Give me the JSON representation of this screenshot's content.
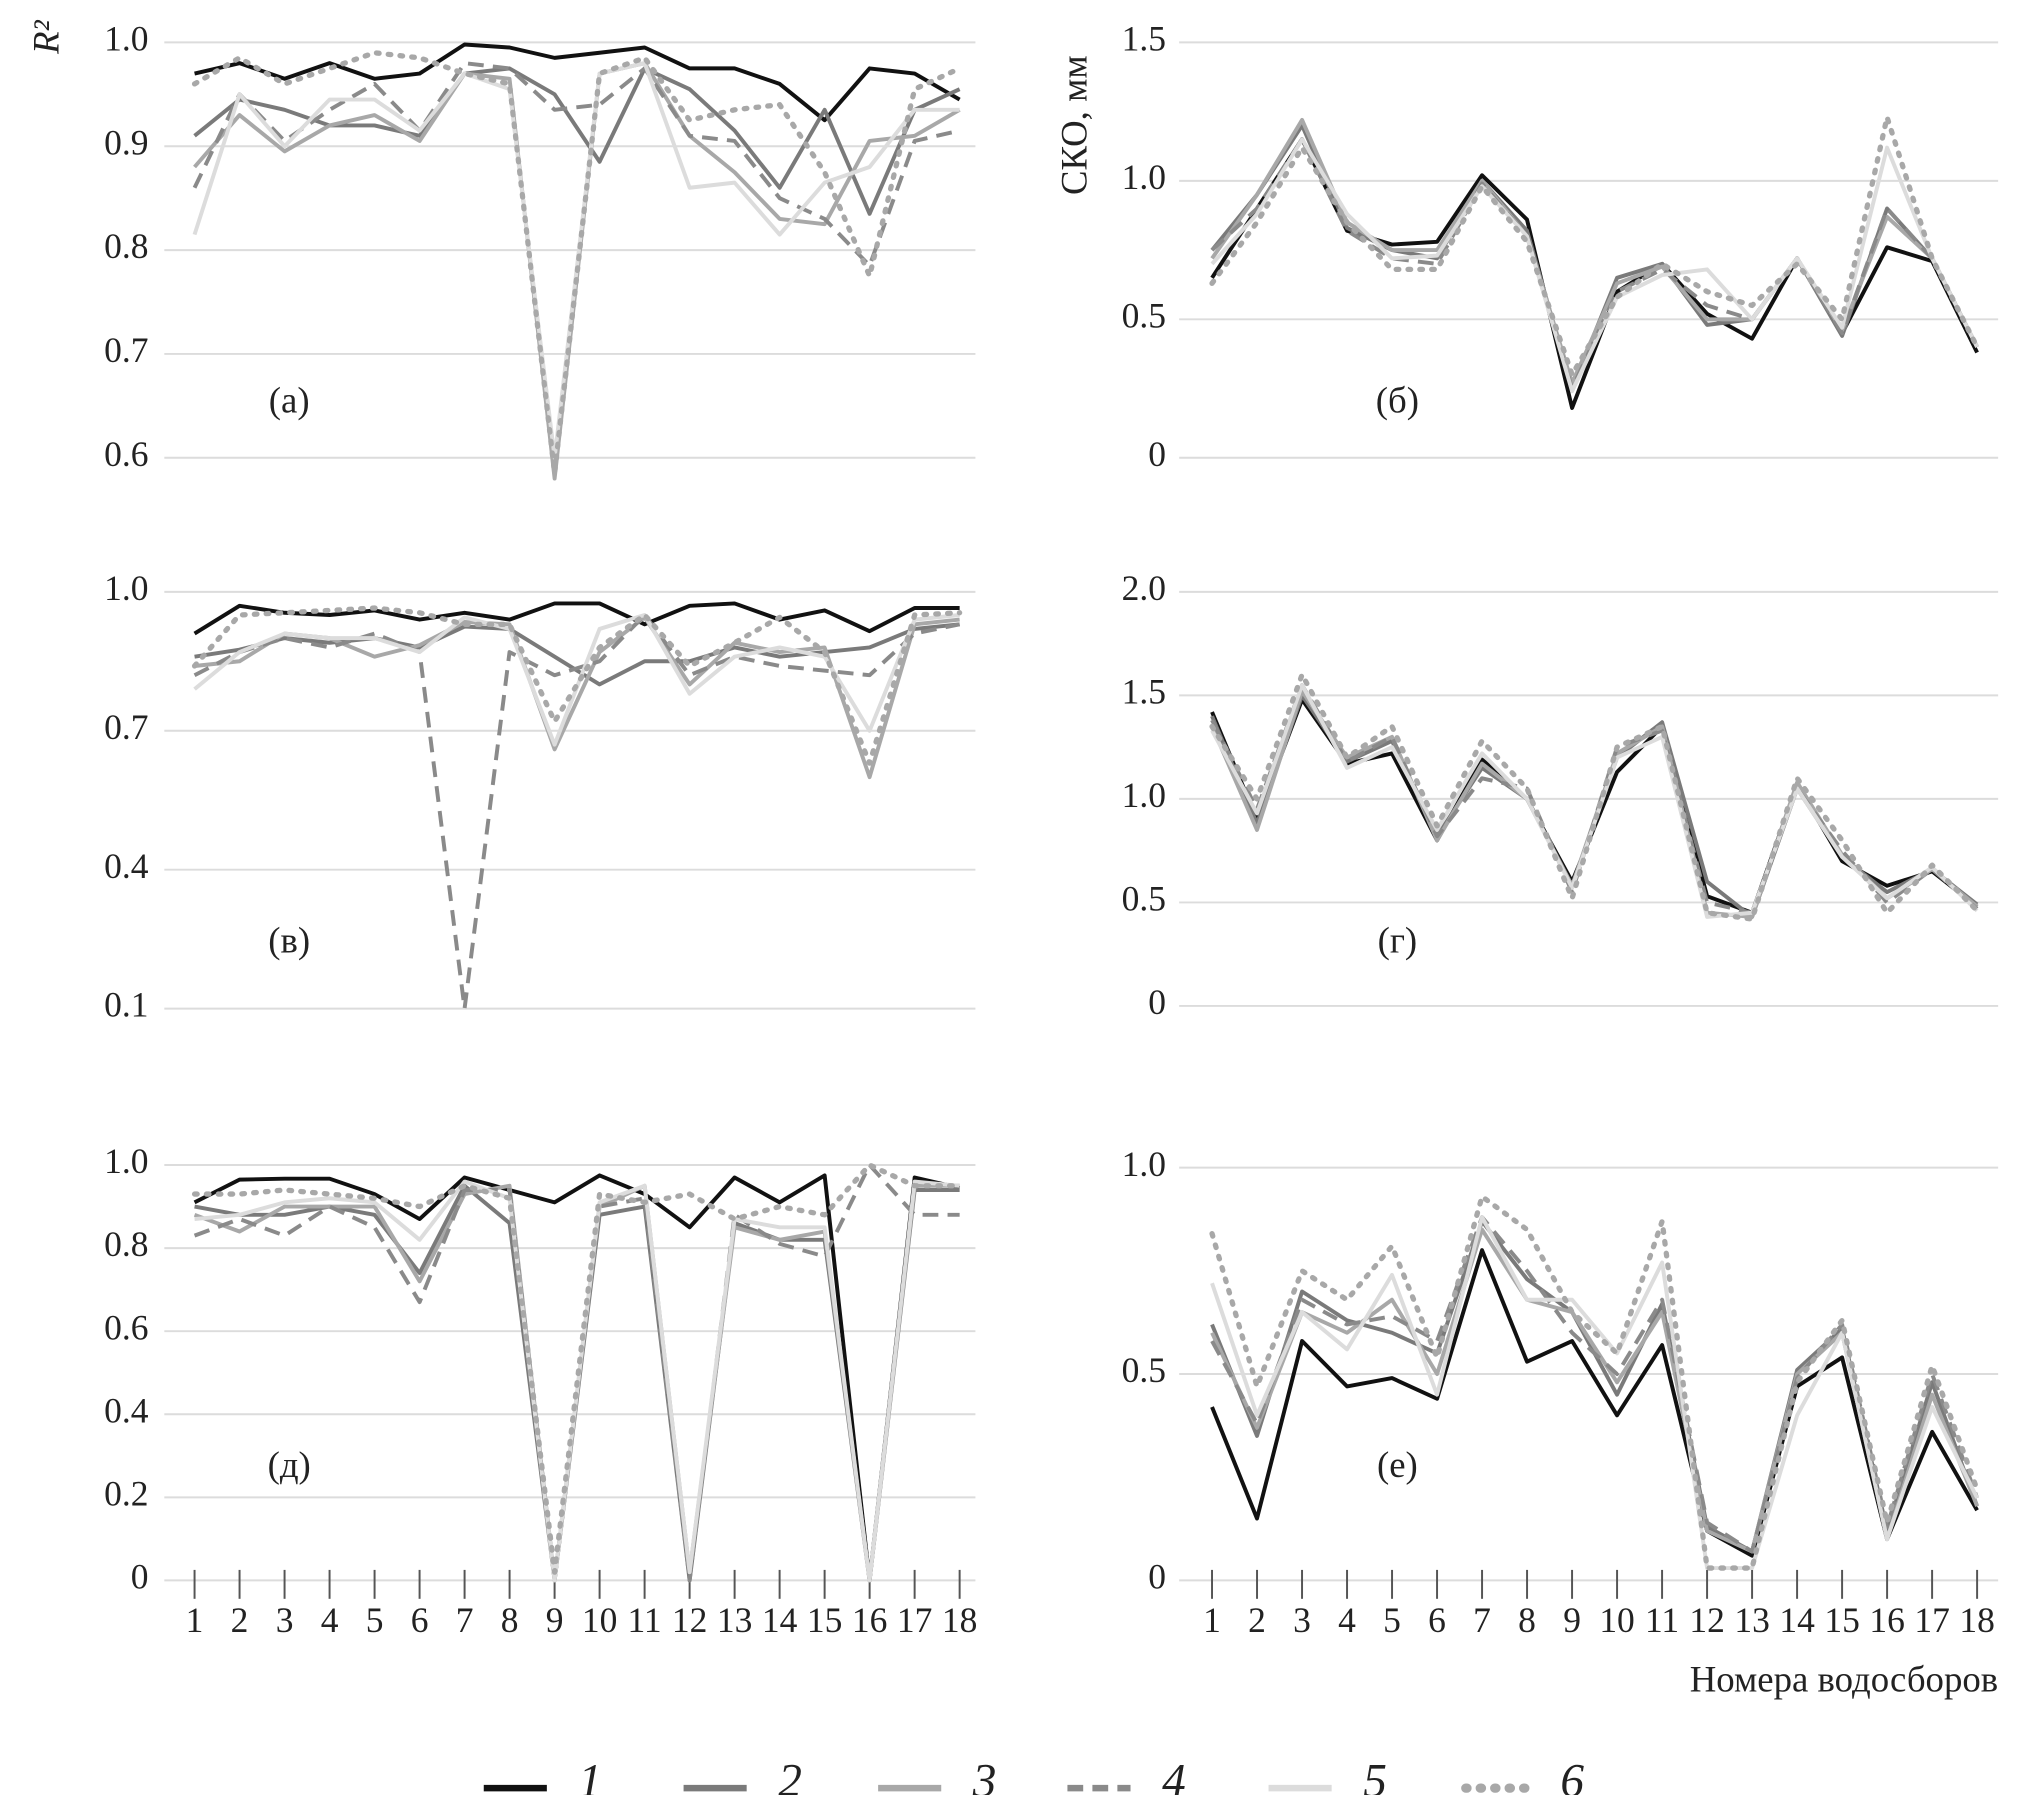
{
  "series_styles": [
    {
      "name": "1",
      "color": "#111111",
      "dash": "none"
    },
    {
      "name": "2",
      "color": "#7a7a7a",
      "dash": "none"
    },
    {
      "name": "3",
      "color": "#a8a8a8",
      "dash": "none"
    },
    {
      "name": "4",
      "color": "#8a8a8a",
      "dash": "12 7"
    },
    {
      "name": "5",
      "color": "#dcdcdc",
      "dash": "none"
    },
    {
      "name": "6",
      "color": "#a8a8a8",
      "dash": "2 7"
    }
  ],
  "chart_data": [
    {
      "type": "line",
      "ylabel": "R²",
      "annotation": "(а)",
      "grid": true,
      "ylim": [
        0.6,
        1.0
      ],
      "yticks": [
        0.6,
        0.7,
        0.8,
        0.9,
        {
          "value": 1,
          "label": "1.0"
        }
      ],
      "series": [
        {
          "values": [
            0.97,
            0.98,
            0.965,
            0.98,
            0.965,
            0.97,
            0.998,
            0.995,
            0.985,
            0.99,
            0.995,
            0.975,
            0.975,
            0.96,
            0.925,
            0.975,
            0.97,
            0.945
          ]
        },
        {
          "values": [
            0.91,
            0.945,
            0.935,
            0.92,
            0.92,
            0.91,
            0.97,
            0.975,
            0.95,
            0.885,
            0.975,
            0.955,
            0.915,
            0.86,
            0.935,
            0.835,
            0.935,
            0.955
          ]
        },
        {
          "values": [
            0.88,
            0.93,
            0.895,
            0.92,
            0.93,
            0.905,
            0.97,
            0.965,
            0.58,
            0.97,
            0.98,
            0.91,
            0.875,
            0.83,
            0.825,
            0.905,
            0.91,
            0.935
          ]
        },
        {
          "values": [
            0.86,
            0.95,
            0.905,
            0.935,
            0.96,
            0.915,
            0.98,
            0.975,
            0.935,
            0.94,
            0.975,
            0.91,
            0.905,
            0.85,
            0.83,
            0.785,
            0.905,
            0.915
          ]
        },
        {
          "values": [
            0.815,
            0.95,
            0.9,
            0.945,
            0.945,
            0.915,
            0.97,
            0.955,
            0.6,
            0.97,
            0.98,
            0.86,
            0.865,
            0.815,
            0.865,
            0.88,
            0.935,
            0.935
          ]
        },
        {
          "values": [
            0.96,
            0.985,
            0.96,
            0.975,
            0.99,
            0.985,
            0.97,
            0.96,
            0.585,
            0.97,
            0.985,
            0.925,
            0.935,
            0.94,
            0.875,
            0.775,
            0.955,
            0.975
          ]
        }
      ]
    },
    {
      "type": "line",
      "ylabel": "СКО, мм",
      "annotation": "(б)",
      "grid": true,
      "ylim": [
        0,
        1.5
      ],
      "yticks": [
        0,
        0.5,
        {
          "value": 1,
          "label": "1.0"
        },
        1.5
      ],
      "series": [
        {
          "values": [
            0.65,
            0.9,
            1.15,
            0.82,
            0.77,
            0.78,
            1.02,
            0.86,
            0.18,
            0.6,
            0.7,
            0.52,
            0.43,
            0.72,
            0.45,
            0.76,
            0.71,
            0.38
          ]
        },
        {
          "values": [
            0.75,
            0.95,
            1.2,
            0.83,
            0.75,
            0.72,
            1.0,
            0.82,
            0.25,
            0.65,
            0.7,
            0.48,
            0.5,
            0.72,
            0.44,
            0.9,
            0.72,
            0.4
          ]
        },
        {
          "values": [
            0.72,
            0.95,
            1.22,
            0.85,
            0.75,
            0.75,
            1.0,
            0.8,
            0.27,
            0.63,
            0.69,
            0.5,
            0.5,
            0.72,
            0.46,
            0.87,
            0.72,
            0.4
          ]
        },
        {
          "values": [
            0.75,
            0.9,
            1.15,
            0.82,
            0.72,
            0.7,
            0.99,
            0.8,
            0.25,
            0.6,
            0.68,
            0.55,
            0.5,
            0.72,
            0.45,
            0.9,
            0.72,
            0.4
          ]
        },
        {
          "values": [
            0.7,
            0.88,
            1.15,
            0.88,
            0.72,
            0.73,
            0.98,
            0.8,
            0.24,
            0.58,
            0.66,
            0.68,
            0.5,
            0.72,
            0.47,
            1.12,
            0.72,
            0.4
          ]
        },
        {
          "values": [
            0.63,
            0.85,
            1.12,
            0.85,
            0.68,
            0.68,
            0.98,
            0.78,
            0.3,
            0.58,
            0.7,
            0.6,
            0.55,
            0.7,
            0.5,
            1.23,
            0.72,
            0.4
          ]
        }
      ]
    },
    {
      "type": "line",
      "annotation": "(в)",
      "grid": true,
      "ylim": [
        0.1,
        1.0
      ],
      "yticks": [
        0.1,
        0.4,
        0.7,
        {
          "value": 1,
          "label": "1.0"
        }
      ],
      "series": [
        {
          "values": [
            0.91,
            0.97,
            0.955,
            0.95,
            0.96,
            0.94,
            0.955,
            0.94,
            0.975,
            0.975,
            0.93,
            0.97,
            0.975,
            0.94,
            0.96,
            0.915,
            0.965,
            0.965
          ]
        },
        {
          "values": [
            0.86,
            0.875,
            0.9,
            0.89,
            0.9,
            0.88,
            0.925,
            0.92,
            0.86,
            0.8,
            0.85,
            0.85,
            0.88,
            0.86,
            0.87,
            0.88,
            0.92,
            0.93
          ]
        },
        {
          "values": [
            0.84,
            0.85,
            0.91,
            0.9,
            0.86,
            0.885,
            0.935,
            0.93,
            0.66,
            0.87,
            0.945,
            0.8,
            0.89,
            0.87,
            0.88,
            0.6,
            0.93,
            0.94
          ]
        },
        {
          "values": [
            0.82,
            0.87,
            0.9,
            0.88,
            0.91,
            0.87,
            0.1,
            0.87,
            0.82,
            0.85,
            0.95,
            0.82,
            0.86,
            0.84,
            0.83,
            0.82,
            0.91,
            0.93
          ]
        },
        {
          "values": [
            0.79,
            0.87,
            0.91,
            0.9,
            0.9,
            0.87,
            0.945,
            0.92,
            0.67,
            0.92,
            0.95,
            0.78,
            0.86,
            0.88,
            0.86,
            0.7,
            0.94,
            0.95
          ]
        },
        {
          "values": [
            0.84,
            0.95,
            0.955,
            0.96,
            0.965,
            0.955,
            0.93,
            0.93,
            0.72,
            0.88,
            0.95,
            0.84,
            0.89,
            0.945,
            0.87,
            0.63,
            0.95,
            0.955
          ]
        }
      ]
    },
    {
      "type": "line",
      "annotation": "(г)",
      "grid": true,
      "ylim": [
        0,
        2.0
      ],
      "yticks": [
        0,
        0.5,
        {
          "value": 1,
          "label": "1.0"
        },
        1.5,
        {
          "value": 2,
          "label": "2.0"
        }
      ],
      "series": [
        {
          "values": [
            1.42,
            0.9,
            1.48,
            1.17,
            1.22,
            0.8,
            1.19,
            1.0,
            0.6,
            1.13,
            1.35,
            0.53,
            0.45,
            1.07,
            0.7,
            0.58,
            0.65,
            0.48
          ]
        },
        {
          "values": [
            1.4,
            0.88,
            1.5,
            1.18,
            1.28,
            0.82,
            1.15,
            1.0,
            0.58,
            1.2,
            1.37,
            0.6,
            0.43,
            1.05,
            0.72,
            0.55,
            0.66,
            0.49
          ]
        },
        {
          "values": [
            1.35,
            0.85,
            1.52,
            1.2,
            1.3,
            0.8,
            1.17,
            1.0,
            0.58,
            1.22,
            1.35,
            0.45,
            0.43,
            1.08,
            0.73,
            0.52,
            0.66,
            0.48
          ]
        },
        {
          "values": [
            1.38,
            0.95,
            1.55,
            1.18,
            1.3,
            0.82,
            1.1,
            1.05,
            0.55,
            1.25,
            1.33,
            0.5,
            0.45,
            1.05,
            0.75,
            0.5,
            0.66,
            0.47
          ]
        },
        {
          "values": [
            1.33,
            0.93,
            1.55,
            1.15,
            1.25,
            0.85,
            1.22,
            1.0,
            0.57,
            1.2,
            1.3,
            0.43,
            0.45,
            1.05,
            0.72,
            0.52,
            0.67,
            0.46
          ]
        },
        {
          "values": [
            1.35,
            1.0,
            1.6,
            1.2,
            1.35,
            0.87,
            1.28,
            1.05,
            0.52,
            1.25,
            1.35,
            0.45,
            0.42,
            1.1,
            0.8,
            0.45,
            0.68,
            0.46
          ]
        }
      ]
    },
    {
      "type": "line",
      "annotation": "(д)",
      "grid": true,
      "categories": [
        "1",
        "2",
        "3",
        "4",
        "5",
        "6",
        "7",
        "8",
        "9",
        "10",
        "11",
        "12",
        "13",
        "14",
        "15",
        "16",
        "17",
        "18"
      ],
      "ylim": [
        0,
        1.0
      ],
      "yticks": [
        0,
        0.2,
        0.4,
        0.6,
        0.8,
        {
          "value": 1,
          "label": "1.0"
        }
      ],
      "series": [
        {
          "values": [
            0.91,
            0.965,
            0.967,
            0.967,
            0.93,
            0.87,
            0.97,
            0.94,
            0.91,
            0.975,
            0.93,
            0.85,
            0.97,
            0.91,
            0.975,
            0.0,
            0.97,
            0.945
          ]
        },
        {
          "values": [
            0.9,
            0.88,
            0.88,
            0.9,
            0.88,
            0.74,
            0.95,
            0.86,
            0.0,
            0.88,
            0.9,
            0.0,
            0.86,
            0.82,
            0.82,
            0.0,
            0.94,
            0.94
          ]
        },
        {
          "values": [
            0.88,
            0.84,
            0.9,
            0.9,
            0.9,
            0.72,
            0.93,
            0.95,
            0.0,
            0.9,
            0.95,
            0.02,
            0.85,
            0.82,
            0.84,
            0.0,
            0.95,
            0.95
          ]
        },
        {
          "values": [
            0.83,
            0.87,
            0.83,
            0.9,
            0.85,
            0.67,
            0.94,
            0.94,
            0.0,
            0.9,
            0.92,
            0.0,
            0.88,
            0.81,
            0.78,
            1.0,
            0.88,
            0.88
          ]
        },
        {
          "values": [
            0.87,
            0.88,
            0.91,
            0.92,
            0.91,
            0.82,
            0.96,
            0.92,
            0.0,
            0.91,
            0.95,
            0.02,
            0.87,
            0.85,
            0.85,
            0.0,
            0.96,
            0.95
          ]
        },
        {
          "values": [
            0.93,
            0.93,
            0.94,
            0.93,
            0.92,
            0.9,
            0.95,
            0.92,
            0.02,
            0.93,
            0.91,
            0.93,
            0.87,
            0.9,
            0.88,
            1.0,
            0.95,
            0.95
          ]
        }
      ]
    },
    {
      "type": "line",
      "annotation": "(е)",
      "grid": true,
      "xlabel": "Номера водосборов",
      "categories": [
        "1",
        "2",
        "3",
        "4",
        "5",
        "6",
        "7",
        "8",
        "9",
        "10",
        "11",
        "12",
        "13",
        "14",
        "15",
        "16",
        "17",
        "18"
      ],
      "ylim": [
        0,
        1.0
      ],
      "yticks": [
        0,
        0.5,
        {
          "value": 1,
          "label": "1.0"
        }
      ],
      "series": [
        {
          "values": [
            0.42,
            0.15,
            0.58,
            0.47,
            0.49,
            0.44,
            0.8,
            0.53,
            0.58,
            0.4,
            0.57,
            0.12,
            0.06,
            0.47,
            0.54,
            0.1,
            0.36,
            0.17
          ]
        },
        {
          "values": [
            0.62,
            0.35,
            0.7,
            0.63,
            0.6,
            0.55,
            0.87,
            0.73,
            0.65,
            0.45,
            0.67,
            0.13,
            0.07,
            0.51,
            0.61,
            0.12,
            0.48,
            0.18
          ]
        },
        {
          "values": [
            0.6,
            0.37,
            0.65,
            0.6,
            0.68,
            0.5,
            0.85,
            0.68,
            0.65,
            0.48,
            0.65,
            0.12,
            0.07,
            0.5,
            0.6,
            0.1,
            0.45,
            0.18
          ]
        },
        {
          "values": [
            0.58,
            0.38,
            0.68,
            0.62,
            0.64,
            0.58,
            0.88,
            0.75,
            0.6,
            0.5,
            0.68,
            0.14,
            0.07,
            0.49,
            0.62,
            0.13,
            0.5,
            0.2
          ]
        },
        {
          "values": [
            0.72,
            0.4,
            0.65,
            0.56,
            0.74,
            0.45,
            0.88,
            0.68,
            0.68,
            0.55,
            0.77,
            0.03,
            0.03,
            0.4,
            0.6,
            0.1,
            0.42,
            0.2
          ]
        },
        {
          "values": [
            0.84,
            0.47,
            0.75,
            0.68,
            0.81,
            0.54,
            0.93,
            0.85,
            0.65,
            0.55,
            0.87,
            0.03,
            0.03,
            0.48,
            0.63,
            0.14,
            0.52,
            0.22
          ]
        }
      ]
    }
  ]
}
